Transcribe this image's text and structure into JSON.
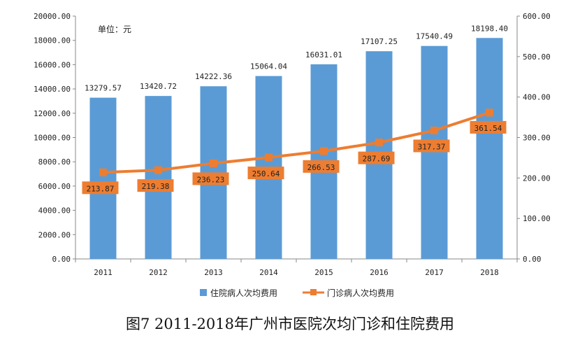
{
  "chart_data": {
    "type": "bar",
    "categories": [
      "2011",
      "2012",
      "2013",
      "2014",
      "2015",
      "2016",
      "2017",
      "2018"
    ],
    "series": [
      {
        "name": "住院病人次均费用",
        "type": "bar",
        "axis": "left",
        "color": "#5b9bd5",
        "values": [
          13279.57,
          13420.72,
          14222.36,
          15064.04,
          16031.01,
          17107.25,
          17540.49,
          18198.4
        ],
        "labels": [
          "13279.57",
          "13420.72",
          "14222.36",
          "15064.04",
          "16031.01",
          "17107.25",
          "17540.49",
          "18198.40"
        ]
      },
      {
        "name": "门诊病人次均费用",
        "type": "line",
        "axis": "right",
        "color": "#ed7d31",
        "values": [
          213.87,
          219.38,
          236.23,
          250.64,
          266.53,
          287.69,
          317.37,
          361.54
        ],
        "labels": [
          "213.87",
          "219.38",
          "236.23",
          "250.64",
          "266.53",
          "287.69",
          "317.37",
          "361.54"
        ]
      }
    ],
    "left_axis": {
      "ylim": [
        0,
        20000
      ],
      "ticks": [
        "0.00",
        "2000.00",
        "4000.00",
        "6000.00",
        "8000.00",
        "10000.00",
        "12000.00",
        "14000.00",
        "16000.00",
        "18000.00",
        "20000.00"
      ]
    },
    "right_axis": {
      "ylim": [
        0,
        600
      ],
      "ticks": [
        "0.00",
        "100.00",
        "200.00",
        "300.00",
        "400.00",
        "500.00",
        "600.00"
      ]
    },
    "unit_note": "单位：元",
    "grid": false,
    "legend_position": "bottom"
  },
  "caption": "图7  2011-2018年广州市医院次均门诊和住院费用"
}
